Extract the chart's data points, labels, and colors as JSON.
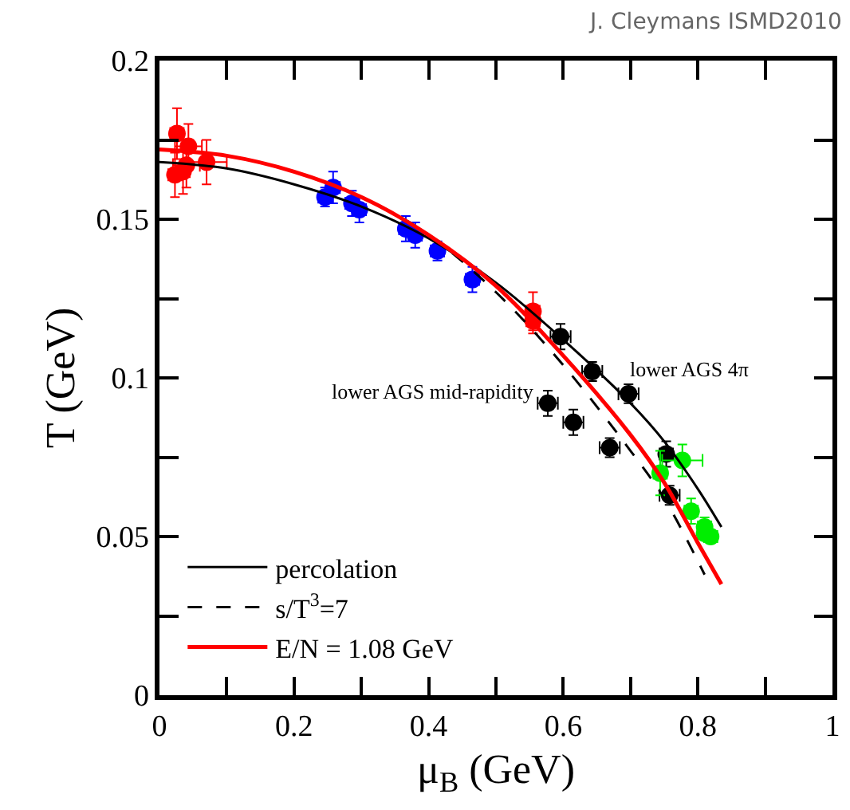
{
  "chart_data": {
    "type": "scatter",
    "xlabel": "μ$_{B}$ (GeV)",
    "ylabel": "T (GeV)",
    "xlim": [
      0,
      1
    ],
    "ylim": [
      0,
      0.2
    ],
    "xticks": [
      0,
      {
        "value": 0.1,
        "label": null
      },
      0.2,
      {
        "value": 0.3,
        "label": null
      },
      0.4,
      {
        "value": 0.5,
        "label": null
      },
      0.6,
      {
        "value": 0.7,
        "label": null
      },
      0.8,
      {
        "value": 0.9,
        "label": null
      },
      1
    ],
    "yticks": [
      0,
      {
        "value": 0.025,
        "label": null
      },
      0.05,
      {
        "value": 0.075,
        "label": null
      },
      0.1,
      {
        "value": 0.125,
        "label": null
      },
      0.15,
      {
        "value": 0.175,
        "label": null
      },
      0.2
    ],
    "legend": "bottom left",
    "annotations": [
      {
        "text": "lower AGS 4π",
        "x": 0.7,
        "y": 0.095
      },
      {
        "text": "lower AGS mid-rapidity",
        "x": 0.577,
        "y": 0.092
      },
      "J. Cleymans ISMD2010"
    ],
    "series": [
      {
        "marker": "circle",
        "color": "#ff0000",
        "x": [
          0.026,
          0.04,
          0.043,
          0.023,
          0.035,
          0.07,
          0.555,
          0.555
        ],
        "values": [
          0.177,
          0.167,
          0.173,
          0.164,
          0.165,
          0.168,
          0.121,
          0.118
        ],
        "errors": [
          0.008,
          0.007,
          0.007,
          0.007,
          0.007,
          0.007,
          0.006,
          0.004
        ],
        "xerrors": [
          0.01,
          0.02,
          0.02,
          0.01,
          0.01,
          0.03,
          0.01,
          0.01
        ]
      },
      {
        "marker": "circle",
        "color": "#0000ff",
        "x": [
          0.258,
          0.246,
          0.286,
          0.297,
          0.366,
          0.38,
          0.413,
          0.465
        ],
        "values": [
          0.16,
          0.157,
          0.155,
          0.153,
          0.147,
          0.145,
          0.14,
          0.131
        ],
        "errors": [
          0.005,
          0.003,
          0.004,
          0.004,
          0.004,
          0.004,
          0.003,
          0.004
        ],
        "xerrors": [
          0.01,
          0.01,
          0.01,
          0.01,
          0.01,
          0.01,
          0.01,
          0.01
        ]
      },
      {
        "marker": "circle",
        "color": "#000000",
        "x": [
          0.596,
          0.643,
          0.697,
          0.577,
          0.615,
          0.669,
          0.753,
          0.758
        ],
        "values": [
          0.113,
          0.102,
          0.095,
          0.092,
          0.086,
          0.078,
          0.076,
          0.063
        ],
        "errors": [
          0.004,
          0.003,
          0.003,
          0.004,
          0.004,
          0.003,
          0.004,
          0.003
        ],
        "xerrors": [
          0.015,
          0.015,
          0.015,
          0.015,
          0.015,
          0.015,
          0.01,
          0.015
        ]
      },
      {
        "marker": "circle",
        "color": "#00ee00",
        "x": [
          0.744,
          0.777,
          0.79,
          0.81,
          0.819,
          0.81
        ],
        "values": [
          0.07,
          0.074,
          0.058,
          0.053,
          0.05,
          0.051
        ],
        "errors": [
          0.007,
          0.005,
          0.004,
          0.003,
          0.002,
          0.002
        ],
        "xerrors": [
          0.01,
          0.03,
          0.01,
          0.01,
          0.01,
          0.01
        ]
      },
      {
        "type": "line",
        "marker": "none",
        "name": "percolation",
        "color": "#000000",
        "line_style": "solid",
        "x": [
          0,
          0.1,
          0.2,
          0.3,
          0.4,
          0.5,
          0.6,
          0.7,
          0.75,
          0.8,
          0.835
        ],
        "values": [
          0.168,
          0.166,
          0.161,
          0.154,
          0.144,
          0.13,
          0.112,
          0.092,
          0.08,
          0.065,
          0.053
        ]
      },
      {
        "type": "line",
        "marker": "none",
        "name": "s/T$^{3}$=7",
        "color": "#000000",
        "line_style": "dashed",
        "x": [
          0,
          0.1,
          0.2,
          0.3,
          0.4,
          0.5,
          0.6,
          0.7,
          0.75,
          0.81
        ],
        "values": [
          0.172,
          0.17,
          0.165,
          0.157,
          0.145,
          0.127,
          0.104,
          0.077,
          0.062,
          0.038
        ]
      },
      {
        "type": "line",
        "marker": "none",
        "name": "E/N = 1.08 GeV",
        "color": "#ff0000",
        "line_style": "solid",
        "x": [
          0,
          0.1,
          0.2,
          0.3,
          0.4,
          0.5,
          0.6,
          0.7,
          0.75,
          0.8,
          0.835
        ],
        "values": [
          0.172,
          0.17,
          0.165,
          0.157,
          0.145,
          0.129,
          0.107,
          0.082,
          0.067,
          0.048,
          0.035
        ]
      }
    ]
  }
}
